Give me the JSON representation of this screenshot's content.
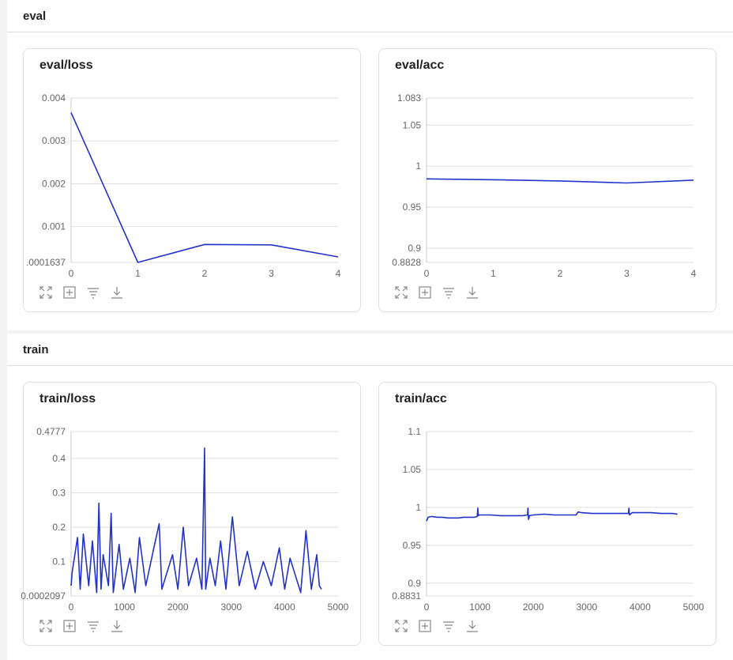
{
  "sections": [
    {
      "title": "eval"
    },
    {
      "title": "train"
    }
  ],
  "toolbar_icons": [
    "maximize-icon",
    "fit-view-icon",
    "filter-icon",
    "download-icon"
  ],
  "colors": {
    "line": "#2233cc",
    "grid": "#e0e0e0",
    "axis": "#cccccc"
  },
  "chart_data": [
    {
      "id": "eval-loss",
      "title": "eval/loss",
      "type": "line",
      "x": [
        0,
        1,
        2,
        3,
        4
      ],
      "y": [
        0.00366,
        0.0001637,
        0.000583,
        0.000573,
        0.000293
      ],
      "xlim": [
        0,
        4
      ],
      "ylim": [
        0.0001637,
        0.004
      ],
      "xticks": [
        "0",
        "1",
        "2",
        "3",
        "4"
      ],
      "yticks": [
        {
          "v": 0.0001637,
          "label": ".0001637"
        },
        {
          "v": 0.001,
          "label": "0.001"
        },
        {
          "v": 0.002,
          "label": "0.002"
        },
        {
          "v": 0.003,
          "label": "0.003"
        },
        {
          "v": 0.004,
          "label": "0.004"
        }
      ],
      "grid": true
    },
    {
      "id": "eval-acc",
      "title": "eval/acc",
      "type": "line",
      "x": [
        0,
        1,
        2,
        3,
        4
      ],
      "y": [
        0.9845,
        0.9835,
        0.982,
        0.9795,
        0.983
      ],
      "xlim": [
        0,
        4
      ],
      "ylim": [
        0.8828,
        1.083
      ],
      "xticks": [
        "0",
        "1",
        "2",
        "3",
        "4"
      ],
      "yticks": [
        {
          "v": 0.8828,
          "label": "0.8828"
        },
        {
          "v": 0.9,
          "label": "0.9"
        },
        {
          "v": 0.95,
          "label": "0.95"
        },
        {
          "v": 1.0,
          "label": "1"
        },
        {
          "v": 1.05,
          "label": "1.05"
        },
        {
          "v": 1.083,
          "label": "1.083"
        }
      ],
      "grid": true
    },
    {
      "id": "train-loss",
      "title": "train/loss",
      "type": "line",
      "x": [
        0,
        20,
        120,
        170,
        230,
        330,
        400,
        480,
        520,
        560,
        600,
        700,
        750,
        790,
        900,
        980,
        1100,
        1200,
        1280,
        1400,
        1550,
        1650,
        1700,
        1900,
        2000,
        2100,
        2200,
        2350,
        2450,
        2500,
        2520,
        2600,
        2700,
        2800,
        2900,
        3020,
        3150,
        3300,
        3450,
        3600,
        3750,
        3900,
        4000,
        4100,
        4300,
        4400,
        4500,
        4600,
        4650,
        4690
      ],
      "y": [
        0.03,
        0.07,
        0.17,
        0.02,
        0.18,
        0.03,
        0.16,
        0.01,
        0.27,
        0.02,
        0.12,
        0.03,
        0.24,
        0.01,
        0.15,
        0.02,
        0.11,
        0.01,
        0.17,
        0.03,
        0.14,
        0.21,
        0.02,
        0.12,
        0.02,
        0.2,
        0.03,
        0.11,
        0.02,
        0.43,
        0.02,
        0.11,
        0.03,
        0.16,
        0.02,
        0.23,
        0.03,
        0.13,
        0.02,
        0.1,
        0.03,
        0.14,
        0.02,
        0.11,
        0.01,
        0.19,
        0.02,
        0.12,
        0.03,
        0.02
      ],
      "xlim": [
        0,
        5000
      ],
      "ylim": [
        0.0002097,
        0.4777
      ],
      "xticks": [
        "0",
        "1000",
        "2000",
        "3000",
        "4000",
        "5000"
      ],
      "yticks": [
        {
          "v": 0.0002097,
          "label": "0.0002097"
        },
        {
          "v": 0.1,
          "label": "0.1"
        },
        {
          "v": 0.2,
          "label": "0.2"
        },
        {
          "v": 0.3,
          "label": "0.3"
        },
        {
          "v": 0.4,
          "label": "0.4"
        },
        {
          "v": 0.4777,
          "label": "0.4777"
        }
      ],
      "grid": true
    },
    {
      "id": "train-acc",
      "title": "train/acc",
      "type": "line",
      "x": [
        0,
        30,
        100,
        200,
        300,
        400,
        500,
        600,
        700,
        800,
        900,
        950,
        960,
        970,
        980,
        1000,
        1200,
        1400,
        1600,
        1800,
        1890,
        1900,
        1910,
        1930,
        2000,
        2200,
        2400,
        2600,
        2800,
        2840,
        2900,
        3100,
        3300,
        3500,
        3700,
        3780,
        3790,
        3800,
        3850,
        4000,
        4200,
        4400,
        4600,
        4700
      ],
      "y": [
        0.982,
        0.987,
        0.988,
        0.987,
        0.987,
        0.986,
        0.986,
        0.986,
        0.987,
        0.987,
        0.987,
        0.988,
        0.999,
        0.989,
        0.99,
        0.99,
        0.99,
        0.989,
        0.989,
        0.989,
        0.99,
        0.999,
        0.984,
        0.989,
        0.99,
        0.991,
        0.99,
        0.99,
        0.99,
        0.994,
        0.993,
        0.992,
        0.992,
        0.992,
        0.992,
        0.992,
        0.999,
        0.99,
        0.993,
        0.993,
        0.993,
        0.992,
        0.992,
        0.991
      ],
      "xlim": [
        0,
        5000
      ],
      "ylim": [
        0.8831,
        1.1
      ],
      "xticks": [
        "0",
        "1000",
        "2000",
        "3000",
        "4000",
        "5000"
      ],
      "yticks": [
        {
          "v": 0.8831,
          "label": "0.8831"
        },
        {
          "v": 0.9,
          "label": "0.9"
        },
        {
          "v": 0.95,
          "label": "0.95"
        },
        {
          "v": 1.0,
          "label": "1"
        },
        {
          "v": 1.05,
          "label": "1.05"
        },
        {
          "v": 1.1,
          "label": "1.1"
        }
      ],
      "grid": true
    }
  ]
}
